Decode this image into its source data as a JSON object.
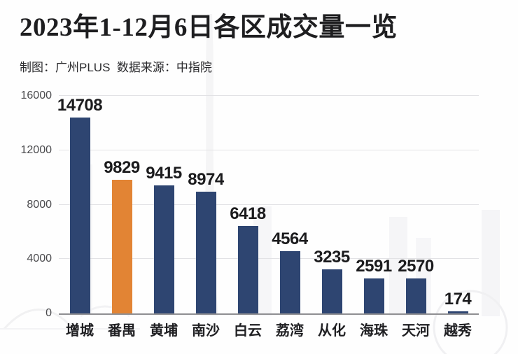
{
  "header": {
    "title": "2023年1-12月6日各区成交量一览",
    "subtitle": "制图：广州PLUS  数据来源：中指院"
  },
  "chart_data": {
    "type": "bar",
    "title": "2023年1-12月6日各区成交量一览",
    "categories": [
      "增城",
      "番禺",
      "黄埔",
      "南沙",
      "白云",
      "荔湾",
      "从化",
      "海珠",
      "天河",
      "越秀"
    ],
    "values": [
      14708,
      9829,
      9415,
      8974,
      6418,
      4564,
      3235,
      2591,
      2570,
      174
    ],
    "highlight_index": 1,
    "xlabel": "",
    "ylabel": "",
    "ylim": [
      0,
      16000
    ],
    "yticks": [
      0,
      4000,
      8000,
      12000,
      16000
    ],
    "grid": true,
    "legend": "none",
    "data_labels": true
  },
  "colors": {
    "bar": "#2e4571",
    "highlight": "#e28434",
    "gridline": "#e2e2e5",
    "axis_line": "#8f8f92",
    "tick_text": "#4b4b4e",
    "value_text": "#1b1b1d",
    "category_text": "#202023",
    "title_text": "#1e1e20",
    "background": "#fefefe"
  }
}
